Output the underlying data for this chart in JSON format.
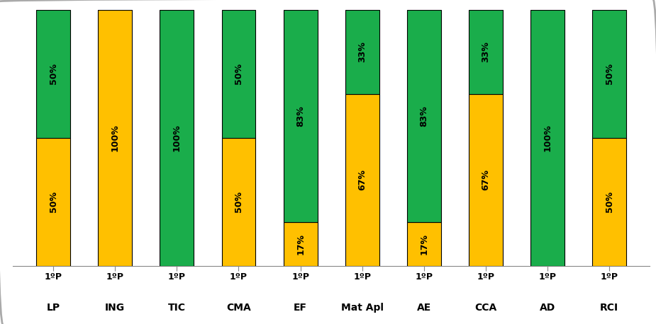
{
  "categories": [
    "LP",
    "ING",
    "TIC",
    "CMA",
    "EF",
    "Mat Apl",
    "AE",
    "CCA",
    "AD",
    "RCI"
  ],
  "x_tick_labels": [
    "1ºP",
    "1ºP",
    "1ºP",
    "1ºP",
    "1ºP",
    "1ºP",
    "1ºP",
    "1ºP",
    "1ºP",
    "1ºP"
  ],
  "orange_values": [
    50,
    100,
    0,
    50,
    17,
    67,
    17,
    67,
    0,
    50
  ],
  "green_values": [
    50,
    0,
    100,
    50,
    83,
    33,
    83,
    33,
    100,
    50
  ],
  "orange_labels": [
    "50%",
    "100%",
    "",
    "50%",
    "17%",
    "67%",
    "17%",
    "67%",
    "",
    "50%"
  ],
  "green_labels": [
    "50%",
    "",
    "100%",
    "50%",
    "83%",
    "33%",
    "83%",
    "33%",
    "100%",
    "50%"
  ],
  "orange_color": "#FFC000",
  "green_color": "#1AAD4B",
  "bar_edge_color": "#000000",
  "text_color": "#000000",
  "background_color": "#FFFFFF",
  "ylim": [
    0,
    100
  ],
  "bar_width": 0.55,
  "font_size": 9,
  "label_font_size": 9,
  "cat_font_size": 10,
  "period_font_size": 9
}
